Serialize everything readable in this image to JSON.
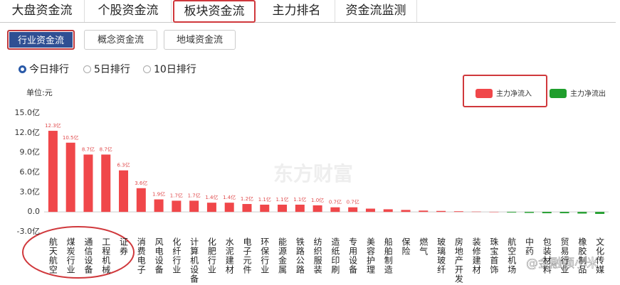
{
  "tabs": [
    {
      "label": "大盘资金流",
      "selected": false
    },
    {
      "label": "个股资金流",
      "selected": false
    },
    {
      "label": "板块资金流",
      "selected": true
    },
    {
      "label": "主力排名",
      "selected": false
    },
    {
      "label": "资金流监测",
      "selected": false
    }
  ],
  "sub_tabs": [
    {
      "label": "行业资金流",
      "selected": true
    },
    {
      "label": "概念资金流",
      "selected": false
    },
    {
      "label": "地域资金流",
      "selected": false
    }
  ],
  "ranking_options": [
    {
      "label": "今日排行",
      "selected": true
    },
    {
      "label": "5日排行",
      "selected": false
    },
    {
      "label": "10日排行",
      "selected": false
    }
  ],
  "chart_data": {
    "type": "bar",
    "unit_label": "单位:元",
    "watermark": "东方财富",
    "categories": [
      "航天航空",
      "煤炭行业",
      "通信设备",
      "工程机械",
      "证券",
      "消费电子",
      "风电设备",
      "化纤行业",
      "计算机设备",
      "化肥行业",
      "水泥建材",
      "电子元件",
      "环保行业",
      "能源金属",
      "铁路公路",
      "纺织服装",
      "造纸印刷",
      "专用设备",
      "美容护理",
      "船舶制造",
      "保险",
      "燃气",
      "玻璃玻纤",
      "房地产开发",
      "装修建材",
      "珠宝首饰",
      "航空机场",
      "中药",
      "包装材料",
      "贸易行业",
      "橡胶制品",
      "文化传媒"
    ],
    "values": [
      12.3,
      10.5,
      8.7,
      8.7,
      6.3,
      3.6,
      1.9,
      1.7,
      1.7,
      1.4,
      1.4,
      1.2,
      1.1,
      1.1,
      1.1,
      1.0,
      0.7,
      0.7,
      0.5,
      0.4,
      0.3,
      0.2,
      0.15,
      0.1,
      0.05,
      0.02,
      -0.1,
      -0.15,
      -0.2,
      -0.2,
      -0.25,
      -0.3
    ],
    "value_labels": [
      "12.3亿",
      "10.5亿",
      "8.7亿",
      "8.7亿",
      "6.3亿",
      "3.6亿",
      "1.9亿",
      "1.7亿",
      "1.7亿",
      "1.4亿",
      "1.4亿",
      "1.2亿",
      "1.1亿",
      "1.1亿",
      "1.1亿",
      "1.0亿",
      "0.7亿",
      "0.7亿",
      null,
      null,
      null,
      null,
      null,
      null,
      null,
      null,
      null,
      null,
      null,
      null,
      null,
      null
    ],
    "ylim": [
      -3,
      15
    ],
    "yticks": [
      {
        "value": -3,
        "label": "-3.0亿"
      },
      {
        "value": 0,
        "label": "0.0"
      },
      {
        "value": 3,
        "label": "3.0亿"
      },
      {
        "value": 6,
        "label": "6.0亿"
      },
      {
        "value": 9,
        "label": "9.0亿"
      },
      {
        "value": 12,
        "label": "12.0亿"
      },
      {
        "value": 15,
        "label": "15.0亿"
      }
    ],
    "legend": [
      {
        "name": "主力净流入",
        "color": "#f0474a"
      },
      {
        "name": "主力净流出",
        "color": "#1f9e2c"
      }
    ]
  },
  "watermark": "@金融颜小米"
}
